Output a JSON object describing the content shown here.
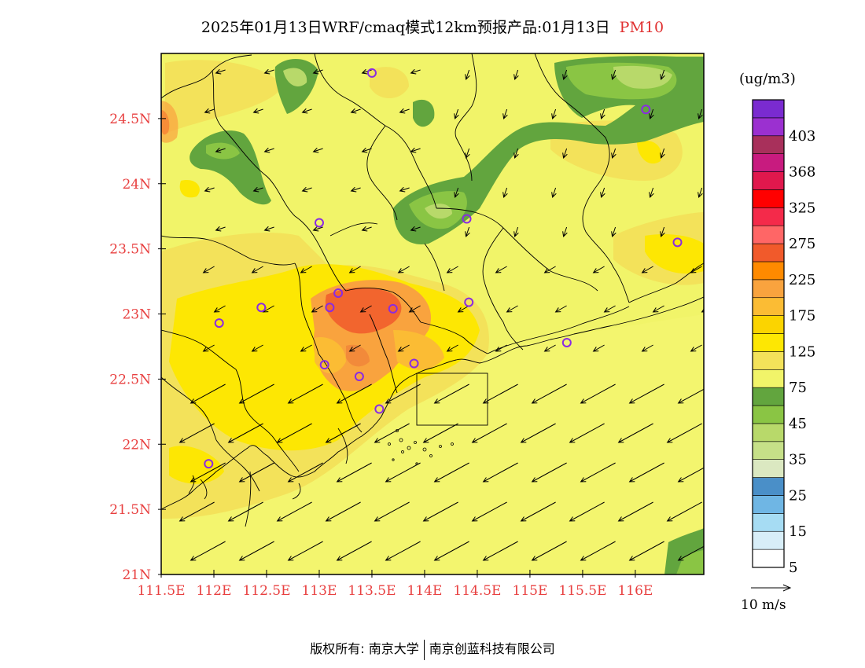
{
  "title": {
    "main": "2025年01月13日WRF/cmaq模式12km预报产品:01月13日",
    "pollutant": "PM10"
  },
  "colorbar": {
    "unit": "(ug/m3)",
    "bins": [
      {
        "color": "#ffffff",
        "label": "5"
      },
      {
        "color": "#d8eef8",
        "label": ""
      },
      {
        "color": "#a6dcf3",
        "label": "15"
      },
      {
        "color": "#6fb6e4",
        "label": ""
      },
      {
        "color": "#4a8fc8",
        "label": "25"
      },
      {
        "color": "#dbe8c1",
        "label": ""
      },
      {
        "color": "#c6e088",
        "label": "35"
      },
      {
        "color": "#b8d96a",
        "label": ""
      },
      {
        "color": "#8ac544",
        "label": "45"
      },
      {
        "color": "#62a53e",
        "label": ""
      },
      {
        "color": "#f1f469",
        "label": "75"
      },
      {
        "color": "#f3e25a",
        "label": ""
      },
      {
        "color": "#fde703",
        "label": "125"
      },
      {
        "color": "#fbd400",
        "label": ""
      },
      {
        "color": "#fbbc34",
        "label": "175"
      },
      {
        "color": "#f9a33e",
        "label": ""
      },
      {
        "color": "#ff8a00",
        "label": "225"
      },
      {
        "color": "#f15a2b",
        "label": ""
      },
      {
        "color": "#ff6666",
        "label": "275"
      },
      {
        "color": "#f42a4a",
        "label": ""
      },
      {
        "color": "#ff0000",
        "label": "325"
      },
      {
        "color": "#e0184d",
        "label": ""
      },
      {
        "color": "#c81b7f",
        "label": "368"
      },
      {
        "color": "#a8305b",
        "label": ""
      },
      {
        "color": "#9b30d0",
        "label": "403"
      },
      {
        "color": "#7a2bd0",
        "label": ""
      }
    ]
  },
  "axes": {
    "lat_labels": [
      "24.5N",
      "24N",
      "23.5N",
      "23N",
      "22.5N",
      "22N",
      "21.5N",
      "21N"
    ],
    "lon_labels": [
      "111.5E",
      "112E",
      "112.5E",
      "113E",
      "113.5E",
      "114E",
      "114.5E",
      "115E",
      "115.5E",
      "116E"
    ]
  },
  "wind_legend": "10 m/s",
  "footer": {
    "left": "版权所有: 南京大学",
    "right": "南京创蓝科技有限公司"
  },
  "stations": [
    {
      "lon": 113.5,
      "lat": 24.85
    },
    {
      "lon": 116.1,
      "lat": 24.57
    },
    {
      "lon": 113.0,
      "lat": 23.7
    },
    {
      "lon": 114.4,
      "lat": 23.73
    },
    {
      "lon": 116.4,
      "lat": 23.55
    },
    {
      "lon": 113.18,
      "lat": 23.16
    },
    {
      "lon": 112.45,
      "lat": 23.05
    },
    {
      "lon": 113.1,
      "lat": 23.05
    },
    {
      "lon": 113.7,
      "lat": 23.04
    },
    {
      "lon": 114.42,
      "lat": 23.09
    },
    {
      "lon": 112.05,
      "lat": 22.93
    },
    {
      "lon": 115.35,
      "lat": 22.78
    },
    {
      "lon": 113.05,
      "lat": 22.61
    },
    {
      "lon": 113.9,
      "lat": 22.62
    },
    {
      "lon": 113.38,
      "lat": 22.52
    },
    {
      "lon": 113.57,
      "lat": 22.27
    },
    {
      "lon": 111.95,
      "lat": 21.85
    }
  ]
}
